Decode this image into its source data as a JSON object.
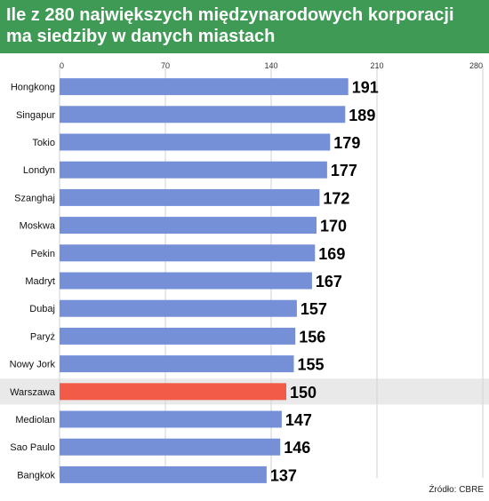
{
  "title": "Ile z 280 największych międzynarodowych korporacji ma siedziby w danych miastach",
  "source": "Źródło: CBRE",
  "colors": {
    "header": "#3f9a55",
    "bar": "#7690d8",
    "highlight_bar": "#f25b47",
    "highlight_row": "#e9e9e9"
  },
  "chart_data": {
    "type": "bar",
    "orientation": "horizontal",
    "title": "Ile z 280 największych międzynarodowych korporacji ma siedziby w danych miastach",
    "xlabel": "",
    "ylabel": "",
    "xlim": [
      0,
      280
    ],
    "ticks": [
      0,
      70,
      140,
      210,
      280
    ],
    "grid": true,
    "highlight": "Warszawa",
    "categories": [
      "Hongkong",
      "Singapur",
      "Tokio",
      "Londyn",
      "Szanghaj",
      "Moskwa",
      "Pekin",
      "Madryt",
      "Dubaj",
      "Paryż",
      "Nowy Jork",
      "Warszawa",
      "Mediolan",
      "Sao Paulo",
      "Bangkok"
    ],
    "values": [
      191,
      189,
      179,
      177,
      172,
      170,
      169,
      167,
      157,
      156,
      155,
      150,
      147,
      146,
      137
    ]
  }
}
